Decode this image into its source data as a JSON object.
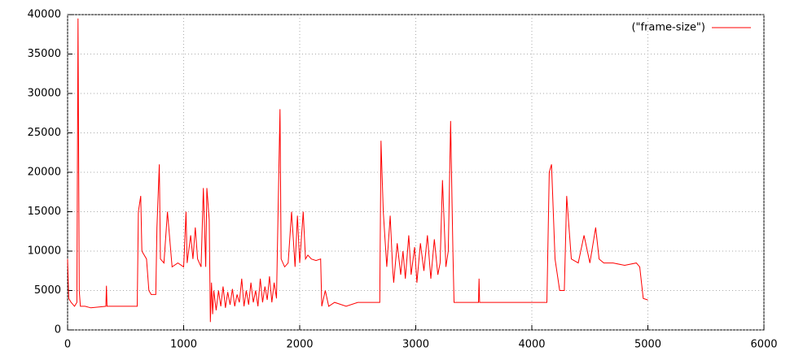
{
  "chart_data": {
    "type": "line",
    "xlim": [
      0,
      6000
    ],
    "ylim": [
      0,
      40000
    ],
    "xticks": [
      0,
      1000,
      2000,
      3000,
      4000,
      5000,
      6000
    ],
    "yticks": [
      0,
      5000,
      10000,
      15000,
      20000,
      25000,
      30000,
      35000,
      40000
    ],
    "grid": true,
    "legend": "top-right",
    "x": [
      0,
      10,
      30,
      60,
      80,
      90,
      100,
      110,
      150,
      200,
      330,
      335,
      340,
      600,
      610,
      630,
      640,
      680,
      700,
      720,
      760,
      770,
      790,
      800,
      830,
      860,
      900,
      950,
      1000,
      1020,
      1030,
      1060,
      1080,
      1100,
      1120,
      1150,
      1170,
      1190,
      1200,
      1220,
      1230,
      1240,
      1250,
      1260,
      1280,
      1300,
      1320,
      1340,
      1360,
      1380,
      1400,
      1420,
      1440,
      1460,
      1480,
      1500,
      1520,
      1540,
      1560,
      1580,
      1600,
      1620,
      1640,
      1660,
      1680,
      1700,
      1720,
      1740,
      1760,
      1780,
      1800,
      1810,
      1830,
      1840,
      1870,
      1900,
      1930,
      1960,
      1980,
      2000,
      2030,
      2050,
      2070,
      2100,
      2140,
      2180,
      2190,
      2220,
      2250,
      2300,
      2400,
      2500,
      2600,
      2690,
      2700,
      2720,
      2750,
      2780,
      2800,
      2810,
      2840,
      2870,
      2890,
      2910,
      2940,
      2960,
      2990,
      3010,
      3040,
      3070,
      3100,
      3130,
      3160,
      3190,
      3210,
      3230,
      3260,
      3280,
      3300,
      3320,
      3330,
      3540,
      3545,
      3550,
      4130,
      4150,
      4170,
      4200,
      4240,
      4280,
      4300,
      4340,
      4400,
      4450,
      4500,
      4550,
      4580,
      4620,
      4700,
      4800,
      4900,
      4930,
      4960,
      5000
    ],
    "series": [
      {
        "name": "(\"frame-size\")",
        "color": "#ff0000",
        "values": [
          9000,
          4000,
          3500,
          3000,
          3500,
          39500,
          5000,
          3000,
          3000,
          2800,
          3000,
          5600,
          3000,
          3000,
          15000,
          17000,
          10000,
          9000,
          5000,
          4500,
          4500,
          13000,
          21000,
          9000,
          8500,
          15000,
          8000,
          8500,
          8000,
          15000,
          8500,
          12000,
          9000,
          13000,
          9000,
          8000,
          18000,
          8000,
          18000,
          14000,
          1000,
          6000,
          2000,
          5000,
          2500,
          5000,
          3000,
          5500,
          2800,
          4800,
          3200,
          5200,
          3000,
          4500,
          3500,
          6500,
          3000,
          5000,
          3200,
          6000,
          3500,
          5000,
          3000,
          6500,
          3500,
          5500,
          3800,
          6800,
          3500,
          6000,
          4000,
          12000,
          28000,
          9000,
          8000,
          8500,
          15000,
          8000,
          14500,
          8500,
          15000,
          9000,
          9500,
          9000,
          8800,
          9000,
          3000,
          5000,
          3000,
          3500,
          3000,
          3500,
          3500,
          3500,
          24000,
          15000,
          8000,
          14500,
          8000,
          6000,
          11000,
          7000,
          10000,
          6500,
          12000,
          7000,
          10500,
          6000,
          11000,
          7500,
          12000,
          6500,
          11500,
          7000,
          8500,
          19000,
          8000,
          10000,
          26500,
          10000,
          3500,
          3500,
          6500,
          3500,
          3500,
          20000,
          21000,
          9000,
          5000,
          5000,
          17000,
          9000,
          8500,
          12000,
          8500,
          13000,
          9000,
          8500,
          8500,
          8200,
          8500,
          8000,
          4000,
          3800
        ]
      }
    ]
  }
}
